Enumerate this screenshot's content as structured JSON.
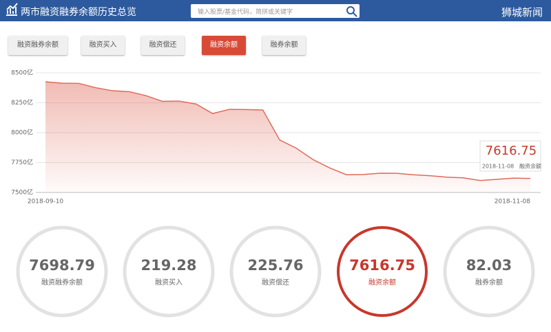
{
  "header": {
    "title": "两市融资融券余额历史总览",
    "search_placeholder": "输入股票/基金代码，简拼或关键字",
    "watermark": "狮城新闻"
  },
  "tabs": [
    "融资融券余额",
    "融资买入",
    "融资偿还",
    "融资余额",
    "融券余额"
  ],
  "active": 3,
  "chart_data": {
    "type": "area",
    "categories": [
      "2018-09-10",
      null,
      null,
      null,
      null,
      null,
      null,
      null,
      null,
      null,
      null,
      null,
      null,
      null,
      null,
      null,
      null,
      null,
      null,
      null,
      null,
      null,
      null,
      null,
      null,
      null,
      null,
      null,
      null,
      "2018-11-08"
    ],
    "series": [
      {
        "name": "融资余额",
        "color": "#e0695a",
        "values": [
          8425,
          8414,
          8412,
          8376,
          8351,
          8343,
          8310,
          8262,
          8264,
          8240,
          8160,
          8195,
          8193,
          8190,
          7940,
          7870,
          7775,
          7705,
          7648,
          7650,
          7661,
          7660,
          7648,
          7640,
          7628,
          7622,
          7600,
          7610,
          7620,
          7616.75
        ]
      }
    ],
    "ylim": [
      7500,
      8500
    ],
    "yticks": [
      {
        "value": 7500,
        "label": "7500亿"
      },
      {
        "value": 7750,
        "label": "7750亿"
      },
      {
        "value": 8000,
        "label": "8000亿"
      },
      {
        "value": 8250,
        "label": "8250亿"
      },
      {
        "value": 8500,
        "label": "8500亿"
      }
    ],
    "grid": true
  },
  "summary": [
    {
      "value": 7698.79,
      "label": "融资融券余额"
    },
    {
      "value": 219.28,
      "label": "融资买入"
    },
    {
      "value": 225.76,
      "label": "融资偿还"
    },
    {
      "value": 7616.75,
      "label": "融资余额"
    },
    {
      "value": 82.03,
      "label": "融券余额"
    }
  ]
}
